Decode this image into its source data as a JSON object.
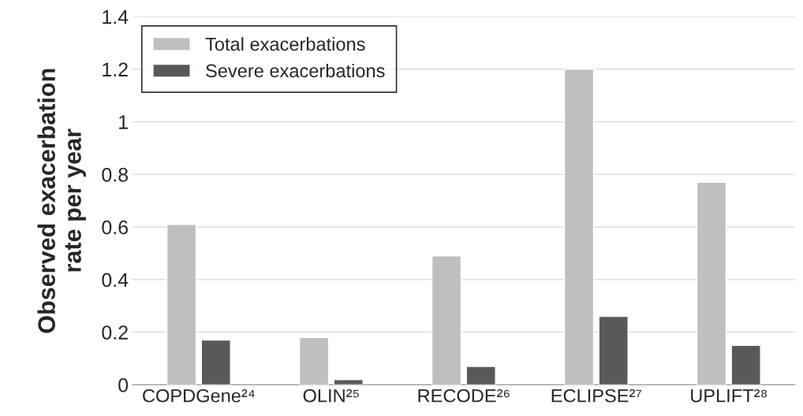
{
  "chart_data": {
    "type": "bar",
    "ylabel": "Observed exacerbation\nrate per year",
    "categories": [
      "COPDGene²⁴",
      "OLIN²⁵",
      "RECODE²⁶",
      "ECLIPSE²⁷",
      "UPLIFT²⁸"
    ],
    "series": [
      {
        "name": "Total exacerbations",
        "color": "#bfbfbf",
        "values": [
          0.61,
          0.18,
          0.49,
          1.2,
          0.77
        ]
      },
      {
        "name": "Severe exacerbations",
        "color": "#595959",
        "values": [
          0.17,
          0.02,
          0.07,
          0.26,
          0.15
        ]
      }
    ],
    "ylim": [
      0,
      1.4
    ],
    "yticks": [
      0,
      0.2,
      0.4,
      0.6,
      0.8,
      1,
      1.2,
      1.4
    ],
    "grid": "y",
    "legend": "top left"
  }
}
